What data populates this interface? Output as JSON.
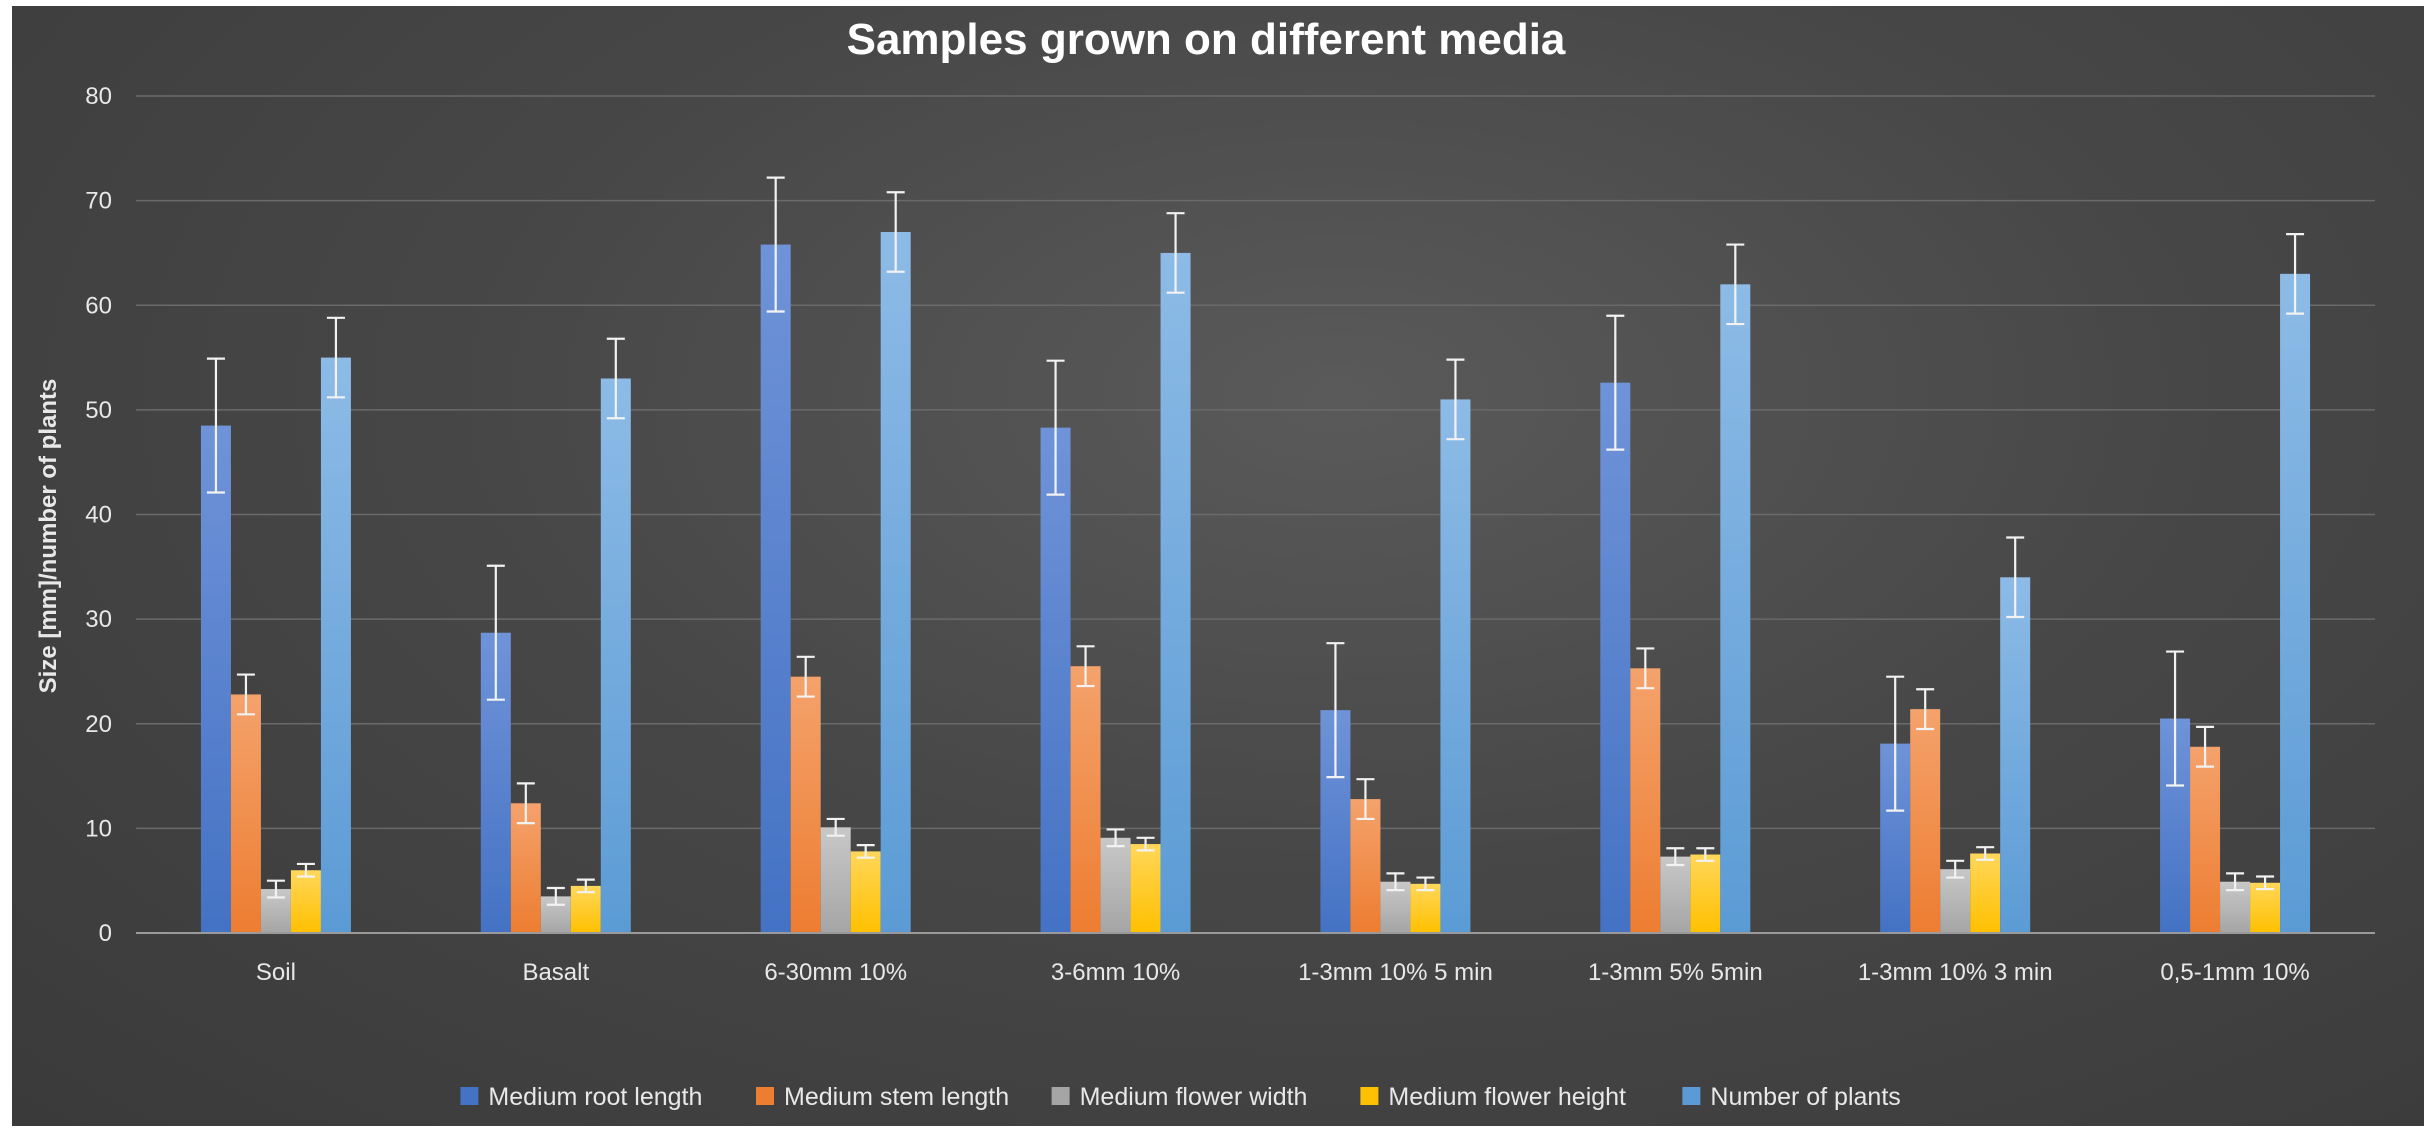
{
  "chart_data": {
    "type": "bar",
    "title": "Samples grown on different media",
    "ylabel": "Size [mm]/number of plants",
    "xlabel": "",
    "ylim": [
      0,
      80
    ],
    "yticks": [
      0,
      10,
      20,
      30,
      40,
      50,
      60,
      70,
      80
    ],
    "grid": true,
    "legend_position": "bottom",
    "categories": [
      "Soil",
      "Basalt",
      "6-30mm 10%",
      "3-6mm 10%",
      "1-3mm 10% 5 min",
      "1-3mm 5% 5min",
      "1-3mm 10% 3 min",
      "0,5-1mm 10%"
    ],
    "series": [
      {
        "name": "Medium root length",
        "color": "#4472c4",
        "color_light": "#6f93d8",
        "values": [
          48.5,
          28.7,
          65.8,
          48.3,
          21.3,
          52.6,
          18.1,
          20.5
        ],
        "errors": [
          6.4,
          6.4,
          6.4,
          6.4,
          6.4,
          6.4,
          6.4,
          6.4
        ]
      },
      {
        "name": "Medium stem length",
        "color": "#ed7d31",
        "color_light": "#f4a26c",
        "values": [
          22.8,
          12.4,
          24.5,
          25.5,
          12.8,
          25.3,
          21.4,
          17.8
        ],
        "errors": [
          1.9,
          1.9,
          1.9,
          1.9,
          1.9,
          1.9,
          1.9,
          1.9
        ]
      },
      {
        "name": "Medium flower width",
        "color": "#a5a5a5",
        "color_light": "#c8c8c8",
        "values": [
          4.2,
          3.5,
          10.1,
          9.1,
          4.9,
          7.3,
          6.1,
          4.9
        ],
        "errors": [
          0.8,
          0.8,
          0.8,
          0.8,
          0.8,
          0.8,
          0.8,
          0.8
        ]
      },
      {
        "name": "Medium flower height",
        "color": "#ffc000",
        "color_light": "#ffd75a",
        "values": [
          6.0,
          4.5,
          7.8,
          8.5,
          4.7,
          7.5,
          7.6,
          4.8
        ],
        "errors": [
          0.6,
          0.6,
          0.6,
          0.6,
          0.6,
          0.6,
          0.6,
          0.6
        ]
      },
      {
        "name": "Number of plants",
        "color": "#5b9bd5",
        "color_light": "#8dbbe6",
        "values": [
          55,
          53,
          67,
          65,
          51,
          62,
          34,
          63
        ],
        "errors": [
          3.8,
          3.8,
          3.8,
          3.8,
          3.8,
          3.8,
          3.8,
          3.8
        ]
      }
    ]
  }
}
